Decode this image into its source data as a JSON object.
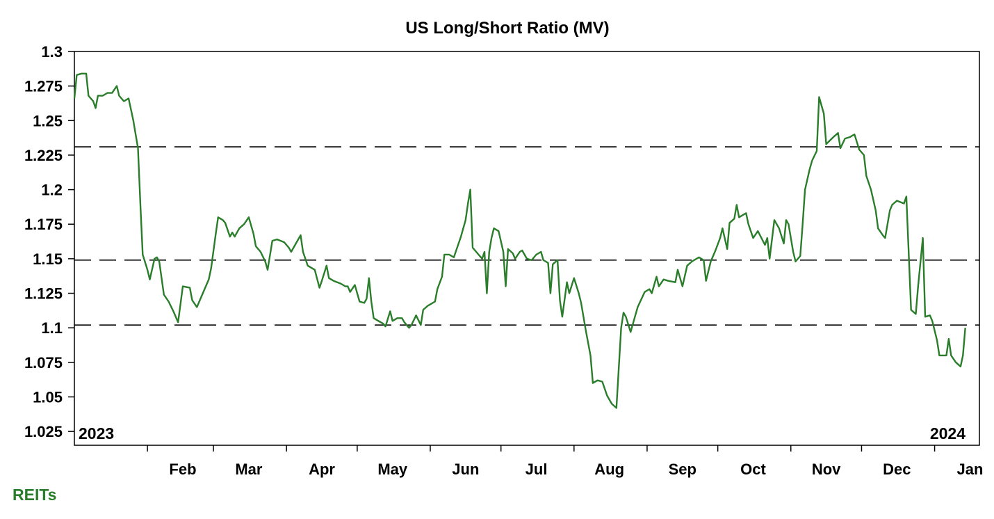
{
  "chart_data": {
    "type": "line",
    "title": "US Long/Short Ratio (MV)",
    "xlabel": "",
    "ylabel": "",
    "ylim": [
      1.015,
      1.3
    ],
    "yticks": [
      1.025,
      1.05,
      1.075,
      1.1,
      1.125,
      1.15,
      1.175,
      1.2,
      1.225,
      1.25,
      1.275,
      1.3
    ],
    "ytick_labels": [
      "1.025",
      "1.05",
      "1.075",
      "1.1",
      "1.125",
      "1.15",
      "1.175",
      "1.2",
      "1.225",
      "1.25",
      "1.275",
      "1.3"
    ],
    "xlim": [
      "2023-01-01",
      "2024-01-20"
    ],
    "xtick_labels": [
      {
        "label": "Feb",
        "date": "2023-02-01"
      },
      {
        "label": "Mar",
        "date": "2023-03-01"
      },
      {
        "label": "Apr",
        "date": "2023-04-01"
      },
      {
        "label": "May",
        "date": "2023-05-01"
      },
      {
        "label": "Jun",
        "date": "2023-06-01"
      },
      {
        "label": "Jul",
        "date": "2023-07-01"
      },
      {
        "label": "Aug",
        "date": "2023-08-01"
      },
      {
        "label": "Sep",
        "date": "2023-09-01"
      },
      {
        "label": "Oct",
        "date": "2023-10-01"
      },
      {
        "label": "Nov",
        "date": "2023-11-01"
      },
      {
        "label": "Dec",
        "date": "2023-12-01"
      },
      {
        "label": "Jan",
        "date": "2024-01-01"
      }
    ],
    "year_labels": {
      "start": "2023",
      "end": "2024"
    },
    "reference_lines": [
      1.231,
      1.149,
      1.102
    ],
    "grid": false,
    "legend": "none",
    "series": [
      {
        "name": "REITs",
        "color": "#2a7d2a",
        "points": [
          [
            "2023-01-01",
            1.266
          ],
          [
            "2023-01-02",
            1.283
          ],
          [
            "2023-01-04",
            1.284
          ],
          [
            "2023-01-06",
            1.284
          ],
          [
            "2023-01-07",
            1.268
          ],
          [
            "2023-01-09",
            1.264
          ],
          [
            "2023-01-10",
            1.259
          ],
          [
            "2023-01-11",
            1.268
          ],
          [
            "2023-01-13",
            1.268
          ],
          [
            "2023-01-15",
            1.27
          ],
          [
            "2023-01-17",
            1.27
          ],
          [
            "2023-01-19",
            1.275
          ],
          [
            "2023-01-20",
            1.268
          ],
          [
            "2023-01-22",
            1.264
          ],
          [
            "2023-01-24",
            1.266
          ],
          [
            "2023-01-26",
            1.25
          ],
          [
            "2023-01-28",
            1.23
          ],
          [
            "2023-01-29",
            1.19
          ],
          [
            "2023-01-30",
            1.153
          ],
          [
            "2023-02-01",
            1.142
          ],
          [
            "2023-02-02",
            1.135
          ],
          [
            "2023-02-04",
            1.15
          ],
          [
            "2023-02-05",
            1.151
          ],
          [
            "2023-02-06",
            1.148
          ],
          [
            "2023-02-08",
            1.124
          ],
          [
            "2023-02-10",
            1.119
          ],
          [
            "2023-02-12",
            1.112
          ],
          [
            "2023-02-14",
            1.104
          ],
          [
            "2023-02-16",
            1.13
          ],
          [
            "2023-02-19",
            1.129
          ],
          [
            "2023-02-20",
            1.12
          ],
          [
            "2023-02-22",
            1.115
          ],
          [
            "2023-02-24",
            1.123
          ],
          [
            "2023-02-27",
            1.135
          ],
          [
            "2023-02-28",
            1.143
          ],
          [
            "2023-03-02",
            1.168
          ],
          [
            "2023-03-03",
            1.18
          ],
          [
            "2023-03-05",
            1.178
          ],
          [
            "2023-03-06",
            1.176
          ],
          [
            "2023-03-08",
            1.166
          ],
          [
            "2023-03-09",
            1.169
          ],
          [
            "2023-03-10",
            1.166
          ],
          [
            "2023-03-12",
            1.172
          ],
          [
            "2023-03-14",
            1.175
          ],
          [
            "2023-03-16",
            1.18
          ],
          [
            "2023-03-18",
            1.168
          ],
          [
            "2023-03-19",
            1.159
          ],
          [
            "2023-03-21",
            1.155
          ],
          [
            "2023-03-23",
            1.148
          ],
          [
            "2023-03-24",
            1.142
          ],
          [
            "2023-03-26",
            1.163
          ],
          [
            "2023-03-28",
            1.164
          ],
          [
            "2023-03-31",
            1.162
          ],
          [
            "2023-04-02",
            1.158
          ],
          [
            "2023-04-03",
            1.155
          ],
          [
            "2023-04-05",
            1.161
          ],
          [
            "2023-04-07",
            1.167
          ],
          [
            "2023-04-08",
            1.155
          ],
          [
            "2023-04-10",
            1.145
          ],
          [
            "2023-04-13",
            1.142
          ],
          [
            "2023-04-15",
            1.129
          ],
          [
            "2023-04-16",
            1.134
          ],
          [
            "2023-04-18",
            1.145
          ],
          [
            "2023-04-19",
            1.136
          ],
          [
            "2023-04-21",
            1.134
          ],
          [
            "2023-04-24",
            1.132
          ],
          [
            "2023-04-26",
            1.13
          ],
          [
            "2023-04-27",
            1.13
          ],
          [
            "2023-04-28",
            1.126
          ],
          [
            "2023-04-30",
            1.131
          ],
          [
            "2023-05-02",
            1.119
          ],
          [
            "2023-05-04",
            1.118
          ],
          [
            "2023-05-05",
            1.121
          ],
          [
            "2023-05-06",
            1.136
          ],
          [
            "2023-05-07",
            1.119
          ],
          [
            "2023-05-08",
            1.107
          ],
          [
            "2023-05-10",
            1.105
          ],
          [
            "2023-05-12",
            1.103
          ],
          [
            "2023-05-13",
            1.101
          ],
          [
            "2023-05-15",
            1.112
          ],
          [
            "2023-05-16",
            1.105
          ],
          [
            "2023-05-18",
            1.107
          ],
          [
            "2023-05-20",
            1.107
          ],
          [
            "2023-05-21",
            1.104
          ],
          [
            "2023-05-23",
            1.1
          ],
          [
            "2023-05-24",
            1.102
          ],
          [
            "2023-05-26",
            1.109
          ],
          [
            "2023-05-28",
            1.102
          ],
          [
            "2023-05-29",
            1.113
          ],
          [
            "2023-05-31",
            1.116
          ],
          [
            "2023-06-03",
            1.119
          ],
          [
            "2023-06-04",
            1.128
          ],
          [
            "2023-06-06",
            1.137
          ],
          [
            "2023-06-07",
            1.153
          ],
          [
            "2023-06-09",
            1.153
          ],
          [
            "2023-06-11",
            1.151
          ],
          [
            "2023-06-12",
            1.156
          ],
          [
            "2023-06-14",
            1.166
          ],
          [
            "2023-06-16",
            1.178
          ],
          [
            "2023-06-17",
            1.19
          ],
          [
            "2023-06-18",
            1.2
          ],
          [
            "2023-06-19",
            1.158
          ],
          [
            "2023-06-21",
            1.154
          ],
          [
            "2023-06-23",
            1.15
          ],
          [
            "2023-06-24",
            1.155
          ],
          [
            "2023-06-25",
            1.125
          ],
          [
            "2023-06-26",
            1.155
          ],
          [
            "2023-06-27",
            1.165
          ],
          [
            "2023-06-28",
            1.172
          ],
          [
            "2023-06-30",
            1.17
          ],
          [
            "2023-07-02",
            1.155
          ],
          [
            "2023-07-03",
            1.13
          ],
          [
            "2023-07-04",
            1.157
          ],
          [
            "2023-07-06",
            1.154
          ],
          [
            "2023-07-07",
            1.15
          ],
          [
            "2023-07-09",
            1.155
          ],
          [
            "2023-07-10",
            1.156
          ],
          [
            "2023-07-12",
            1.15
          ],
          [
            "2023-07-14",
            1.149
          ],
          [
            "2023-07-16",
            1.153
          ],
          [
            "2023-07-18",
            1.155
          ],
          [
            "2023-07-19",
            1.149
          ],
          [
            "2023-07-21",
            1.147
          ],
          [
            "2023-07-22",
            1.125
          ],
          [
            "2023-07-23",
            1.146
          ],
          [
            "2023-07-25",
            1.149
          ],
          [
            "2023-07-26",
            1.12
          ],
          [
            "2023-07-27",
            1.108
          ],
          [
            "2023-07-29",
            1.133
          ],
          [
            "2023-07-30",
            1.125
          ],
          [
            "2023-08-01",
            1.136
          ],
          [
            "2023-08-03",
            1.125
          ],
          [
            "2023-08-04",
            1.118
          ],
          [
            "2023-08-06",
            1.098
          ],
          [
            "2023-08-08",
            1.08
          ],
          [
            "2023-08-09",
            1.06
          ],
          [
            "2023-08-11",
            1.062
          ],
          [
            "2023-08-13",
            1.061
          ],
          [
            "2023-08-15",
            1.051
          ],
          [
            "2023-08-17",
            1.045
          ],
          [
            "2023-08-19",
            1.042
          ],
          [
            "2023-08-21",
            1.1
          ],
          [
            "2023-08-22",
            1.111
          ],
          [
            "2023-08-23",
            1.108
          ],
          [
            "2023-08-25",
            1.097
          ],
          [
            "2023-08-27",
            1.109
          ],
          [
            "2023-08-28",
            1.115
          ],
          [
            "2023-08-31",
            1.126
          ],
          [
            "2023-09-02",
            1.128
          ],
          [
            "2023-09-03",
            1.125
          ],
          [
            "2023-09-05",
            1.137
          ],
          [
            "2023-09-06",
            1.13
          ],
          [
            "2023-09-08",
            1.135
          ],
          [
            "2023-09-10",
            1.134
          ],
          [
            "2023-09-13",
            1.133
          ],
          [
            "2023-09-14",
            1.142
          ],
          [
            "2023-09-16",
            1.13
          ],
          [
            "2023-09-18",
            1.145
          ],
          [
            "2023-09-20",
            1.148
          ],
          [
            "2023-09-23",
            1.151
          ],
          [
            "2023-09-25",
            1.149
          ],
          [
            "2023-09-26",
            1.134
          ],
          [
            "2023-09-28",
            1.148
          ],
          [
            "2023-09-30",
            1.156
          ],
          [
            "2023-10-02",
            1.165
          ],
          [
            "2023-10-03",
            1.172
          ],
          [
            "2023-10-05",
            1.157
          ],
          [
            "2023-10-06",
            1.176
          ],
          [
            "2023-10-08",
            1.179
          ],
          [
            "2023-10-09",
            1.189
          ],
          [
            "2023-10-10",
            1.18
          ],
          [
            "2023-10-13",
            1.183
          ],
          [
            "2023-10-14",
            1.175
          ],
          [
            "2023-10-16",
            1.165
          ],
          [
            "2023-10-18",
            1.17
          ],
          [
            "2023-10-21",
            1.16
          ],
          [
            "2023-10-22",
            1.165
          ],
          [
            "2023-10-23",
            1.15
          ],
          [
            "2023-10-25",
            1.178
          ],
          [
            "2023-10-27",
            1.172
          ],
          [
            "2023-10-29",
            1.161
          ],
          [
            "2023-10-30",
            1.178
          ],
          [
            "2023-10-31",
            1.175
          ],
          [
            "2023-11-02",
            1.155
          ],
          [
            "2023-11-03",
            1.148
          ],
          [
            "2023-11-05",
            1.152
          ],
          [
            "2023-11-06",
            1.175
          ],
          [
            "2023-11-07",
            1.2
          ],
          [
            "2023-11-09",
            1.215
          ],
          [
            "2023-11-10",
            1.221
          ],
          [
            "2023-11-12",
            1.228
          ],
          [
            "2023-11-13",
            1.267
          ],
          [
            "2023-11-15",
            1.255
          ],
          [
            "2023-11-16",
            1.233
          ],
          [
            "2023-11-19",
            1.238
          ],
          [
            "2023-11-21",
            1.241
          ],
          [
            "2023-11-22",
            1.23
          ],
          [
            "2023-11-24",
            1.237
          ],
          [
            "2023-11-26",
            1.238
          ],
          [
            "2023-11-28",
            1.24
          ],
          [
            "2023-11-30",
            1.229
          ],
          [
            "2023-12-02",
            1.225
          ],
          [
            "2023-12-03",
            1.21
          ],
          [
            "2023-12-05",
            1.2
          ],
          [
            "2023-12-07",
            1.185
          ],
          [
            "2023-12-08",
            1.172
          ],
          [
            "2023-12-10",
            1.167
          ],
          [
            "2023-12-11",
            1.165
          ],
          [
            "2023-12-13",
            1.185
          ],
          [
            "2023-12-14",
            1.189
          ],
          [
            "2023-12-16",
            1.192
          ],
          [
            "2023-12-19",
            1.19
          ],
          [
            "2023-12-20",
            1.195
          ],
          [
            "2023-12-22",
            1.113
          ],
          [
            "2023-12-24",
            1.11
          ],
          [
            "2023-12-25",
            1.13
          ],
          [
            "2023-12-27",
            1.165
          ],
          [
            "2023-12-28",
            1.108
          ],
          [
            "2023-12-30",
            1.109
          ],
          [
            "2023-12-31",
            1.105
          ],
          [
            "2024-01-02",
            1.091
          ],
          [
            "2024-01-03",
            1.08
          ],
          [
            "2024-01-06",
            1.08
          ],
          [
            "2024-01-07",
            1.092
          ],
          [
            "2024-01-08",
            1.08
          ],
          [
            "2024-01-10",
            1.075
          ],
          [
            "2024-01-12",
            1.072
          ],
          [
            "2024-01-13",
            1.08
          ],
          [
            "2024-01-14",
            1.1
          ]
        ]
      }
    ]
  }
}
